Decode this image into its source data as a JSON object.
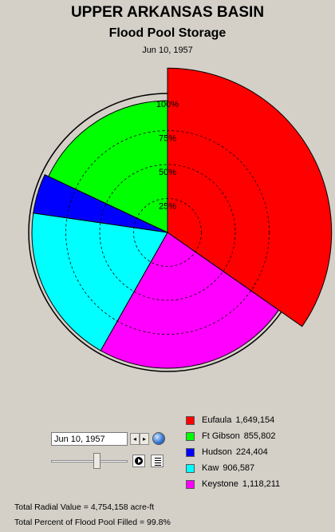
{
  "header": {
    "title": "UPPER ARKANSAS BASIN",
    "subtitle": "Flood Pool Storage",
    "date": "Jun 10, 1957"
  },
  "chart_data": {
    "type": "polar-area",
    "rings": [
      "25%",
      "50%",
      "75%",
      "100%"
    ],
    "series": [
      {
        "name": "Eufaula",
        "storage": "1,649,154",
        "percent_full": 121,
        "color": "#ff0000"
      },
      {
        "name": "Keystone",
        "storage": "1,118,211",
        "percent_full": 100,
        "color": "#ff00ff"
      },
      {
        "name": "Kaw",
        "storage": "906,587",
        "percent_full": 100,
        "color": "#00ffff"
      },
      {
        "name": "Hudson",
        "storage": "224,404",
        "percent_full": 100,
        "color": "#0000ff"
      },
      {
        "name": "Ft Gibson",
        "storage": "855,802",
        "percent_full": 97,
        "color": "#00ff00"
      }
    ]
  },
  "legend": [
    {
      "name": "Eufaula",
      "value": "1,649,154",
      "color": "#ff0000"
    },
    {
      "name": "Ft Gibson",
      "value": "855,802",
      "color": "#00ff00"
    },
    {
      "name": "Hudson",
      "value": "224,404",
      "color": "#0000ff"
    },
    {
      "name": "Kaw",
      "value": "906,587",
      "color": "#00ffff"
    },
    {
      "name": "Keystone",
      "value": "1,118,211",
      "color": "#ff00ff"
    }
  ],
  "controls": {
    "date_value": "Jun 10, 1957",
    "prev_icon": "◂",
    "next_icon": "▸",
    "slider_position": 0.55
  },
  "summary": {
    "total_radial": "Total Radial Value =  4,754,158 acre-ft",
    "total_percent": "Total Percent of Flood Pool Filled =  99.8%"
  }
}
